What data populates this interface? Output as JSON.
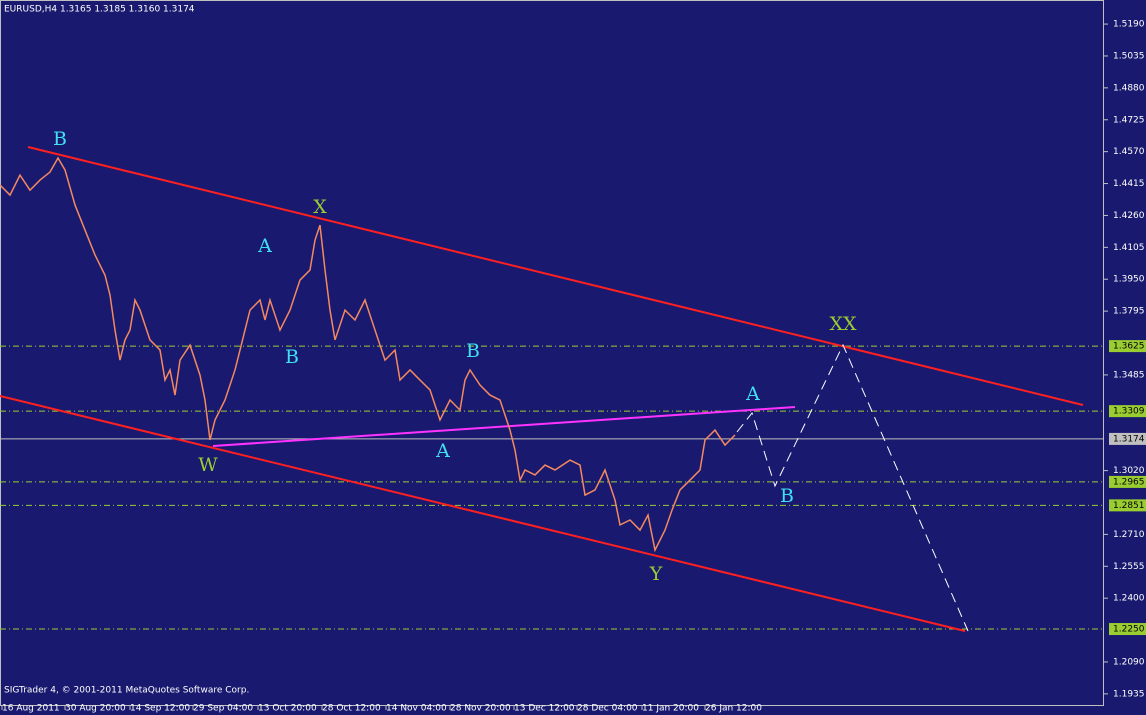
{
  "chart_data": {
    "type": "line",
    "header": "EURUSD,H4  1.3165 1.3185 1.3160 1.3174",
    "footer": "SIGTrader 4, © 2001-2011 MetaQuotes Software Corp.",
    "xlim": [
      0,
      1104
    ],
    "xticks": [
      {
        "value": 2,
        "label": "16 Aug 2011"
      },
      {
        "value": 65,
        "label": "30 Aug 20:00"
      },
      {
        "value": 130,
        "label": "14 Sep 12:00"
      },
      {
        "value": 193,
        "label": "29 Sep 04:00"
      },
      {
        "value": 258,
        "label": "13 Oct 20:00"
      },
      {
        "value": 322,
        "label": "28 Oct 12:00"
      },
      {
        "value": 386,
        "label": "14 Nov 04:00"
      },
      {
        "value": 450,
        "label": "28 Nov 20:00"
      },
      {
        "value": 514,
        "label": "13 Dec 12:00"
      },
      {
        "value": 577,
        "label": "28 Dec 04:00"
      },
      {
        "value": 642,
        "label": "11 Jan 20:00"
      },
      {
        "value": 705,
        "label": "26 Jan 12:00"
      }
    ],
    "ylim": [
      1.1876,
      1.5307
    ],
    "yticks": [
      {
        "value": 1.519,
        "label": "1.5190"
      },
      {
        "value": 1.5035,
        "label": "1.5035"
      },
      {
        "value": 1.488,
        "label": "1.4880"
      },
      {
        "value": 1.4725,
        "label": "1.4725"
      },
      {
        "value": 1.457,
        "label": "1.4570"
      },
      {
        "value": 1.4415,
        "label": "1.4415"
      },
      {
        "value": 1.426,
        "label": "1.4260"
      },
      {
        "value": 1.4105,
        "label": "1.4105"
      },
      {
        "value": 1.395,
        "label": "1.3950"
      },
      {
        "value": 1.3795,
        "label": "1.3795"
      },
      {
        "value": 1.3485,
        "label": "1.3485"
      },
      {
        "value": 1.302,
        "label": "1.3020"
      },
      {
        "value": 1.271,
        "label": "1.2710"
      },
      {
        "value": 1.2555,
        "label": "1.2555"
      },
      {
        "value": 1.24,
        "label": "1.2400"
      },
      {
        "value": 1.209,
        "label": "1.2090"
      },
      {
        "value": 1.1935,
        "label": "1.1935"
      }
    ],
    "levels": [
      {
        "value": 1.3625,
        "label": "1.3625",
        "color": "#9acd32"
      },
      {
        "value": 1.3309,
        "label": "1.3309",
        "color": "#9acd32"
      },
      {
        "value": 1.3174,
        "label": "1.3174",
        "color": "#c0c0c0"
      },
      {
        "value": 1.2965,
        "label": "1.2965",
        "color": "#9acd32"
      },
      {
        "value": 1.2851,
        "label": "1.2851",
        "color": "#9acd32"
      },
      {
        "value": 1.225,
        "label": "1.2250",
        "color": "#9acd32"
      }
    ],
    "series": [
      {
        "color": "#f4895f",
        "x": [
          0,
          10,
          20,
          30,
          40,
          50,
          58,
          65,
          75,
          85,
          95,
          105,
          110,
          115,
          120,
          125,
          130,
          135,
          140,
          150,
          160,
          165,
          170,
          175,
          180,
          190,
          200,
          205,
          210,
          215,
          225,
          235,
          240,
          250,
          260,
          265,
          270,
          280,
          290,
          300,
          310,
          315,
          320,
          325,
          330,
          335,
          345,
          355,
          365,
          375,
          385,
          395,
          400,
          410,
          420,
          430,
          440,
          450,
          460,
          465,
          470,
          480,
          490,
          500,
          510,
          515,
          520,
          525,
          535,
          545,
          555,
          570,
          580,
          585,
          595,
          605,
          615,
          620,
          630,
          640,
          648,
          655,
          665,
          672,
          680,
          690,
          700,
          705,
          715,
          725,
          735
        ],
        "values": [
          1.4408,
          1.4359,
          1.4456,
          1.4383,
          1.4432,
          1.4471,
          1.4539,
          1.4481,
          1.4311,
          1.4189,
          1.4068,
          1.397,
          1.3873,
          1.3703,
          1.3557,
          1.3655,
          1.3703,
          1.3849,
          1.38,
          1.3655,
          1.3606,
          1.346,
          1.3509,
          1.3387,
          1.3557,
          1.363,
          1.3484,
          1.3363,
          1.3169,
          1.3266,
          1.3363,
          1.3509,
          1.3606,
          1.38,
          1.3849,
          1.3752,
          1.3849,
          1.3703,
          1.38,
          1.3946,
          1.3995,
          1.414,
          1.4213,
          1.3995,
          1.38,
          1.3655,
          1.38,
          1.3752,
          1.3849,
          1.3703,
          1.3557,
          1.3606,
          1.346,
          1.3509,
          1.346,
          1.3412,
          1.3266,
          1.3363,
          1.3314,
          1.346,
          1.3509,
          1.3436,
          1.3387,
          1.3363,
          1.3217,
          1.312,
          1.2974,
          1.3023,
          1.2999,
          1.3047,
          1.3023,
          1.3071,
          1.3047,
          1.2901,
          1.2926,
          1.3023,
          1.2877,
          1.2756,
          1.278,
          1.2731,
          1.2804,
          1.2634,
          1.2731,
          1.2828,
          1.2926,
          1.2974,
          1.3023,
          1.3169,
          1.3217,
          1.3144,
          1.3193
        ]
      }
    ],
    "annotations": [
      "B",
      "X",
      "A",
      "B",
      "W",
      "B",
      "A",
      "A",
      "B",
      "XX",
      "Y"
    ]
  }
}
